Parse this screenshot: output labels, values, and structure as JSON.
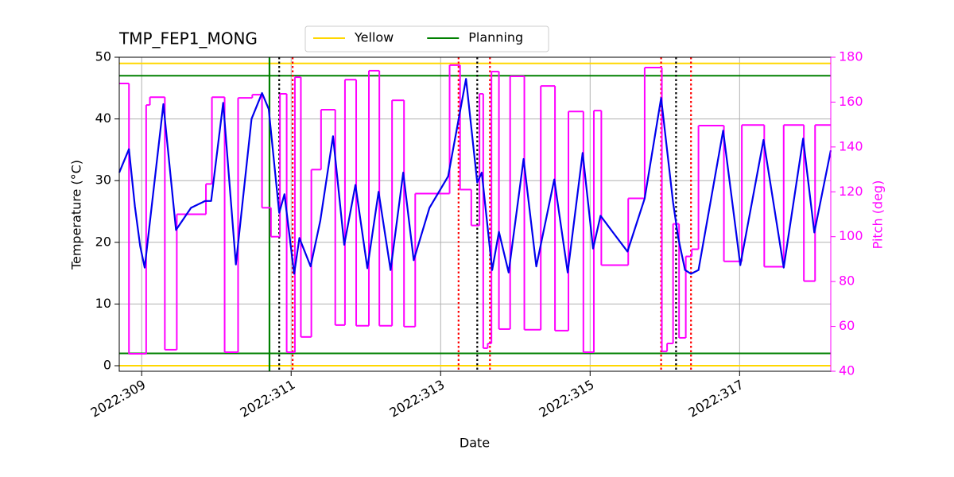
{
  "chart_data": {
    "type": "line",
    "title": "TMP_FEP1_MONG",
    "xlabel": "Date",
    "ylabel": "Temperature (°C)",
    "y2label": "Pitch (deg)",
    "xlim": [
      308.7,
      318.22
    ],
    "ylim": [
      -0.9,
      50
    ],
    "y2lim": [
      40,
      180
    ],
    "xticks": [
      {
        "value": 309,
        "label": "2022:309"
      },
      {
        "value": 311,
        "label": "2022:311"
      },
      {
        "value": 313,
        "label": "2022:313"
      },
      {
        "value": 315,
        "label": "2022:315"
      },
      {
        "value": 317,
        "label": "2022:317"
      }
    ],
    "yticks": [
      0,
      10,
      20,
      30,
      40,
      50
    ],
    "y2ticks": [
      40,
      60,
      80,
      100,
      120,
      140,
      160,
      180
    ],
    "grid": true,
    "legend": "upper center",
    "y2color": "#ff00ff",
    "series": [
      {
        "color": "#0000ee",
        "axis": "y",
        "x": [
          308.7,
          308.83,
          308.91,
          308.98,
          309.04,
          309.29,
          309.46,
          309.66,
          309.85,
          309.93,
          310.09,
          310.26,
          310.47,
          310.61,
          310.7,
          310.84,
          310.91,
          311.04,
          311.11,
          311.26,
          311.39,
          311.56,
          311.71,
          311.86,
          312.02,
          312.17,
          312.33,
          312.5,
          312.64,
          312.85,
          313.1,
          313.34,
          313.49,
          313.55,
          313.69,
          313.78,
          313.91,
          314.11,
          314.28,
          314.52,
          314.7,
          314.9,
          315.04,
          315.14,
          315.3,
          315.5,
          315.73,
          315.95,
          316.11,
          316.18,
          316.27,
          316.35,
          316.45,
          316.78,
          317.01,
          317.32,
          317.59,
          317.85,
          318.0,
          318.22
        ],
        "values": [
          31.3,
          35.1,
          25.8,
          19.4,
          15.9,
          42.4,
          22.0,
          25.6,
          26.7,
          26.7,
          42.6,
          16.4,
          40.0,
          44.2,
          41.6,
          24.8,
          27.8,
          14.9,
          20.7,
          16.1,
          23.5,
          37.2,
          19.6,
          29.3,
          15.8,
          28.2,
          15.5,
          31.3,
          17.1,
          25.6,
          30.7,
          46.5,
          29.7,
          31.3,
          15.5,
          21.7,
          15.1,
          33.5,
          16.1,
          30.2,
          15.1,
          34.5,
          19.0,
          24.3,
          21.7,
          18.5,
          27.1,
          43.4,
          26.5,
          20.7,
          15.5,
          14.9,
          15.5,
          38.1,
          16.3,
          36.6,
          15.9,
          36.8,
          21.6,
          34.9
        ]
      },
      {
        "color": "#ff00ff",
        "axis": "y2",
        "step": "post",
        "x": [
          308.7,
          308.83,
          309.06,
          309.11,
          309.31,
          309.47,
          309.86,
          309.94,
          310.11,
          310.29,
          310.48,
          310.61,
          310.73,
          310.85,
          310.94,
          311.05,
          311.13,
          311.27,
          311.4,
          311.59,
          311.72,
          311.87,
          312.04,
          312.18,
          312.35,
          312.51,
          312.66,
          313.12,
          313.26,
          313.41,
          313.52,
          313.57,
          313.63,
          313.68,
          313.78,
          313.93,
          314.12,
          314.34,
          314.53,
          314.71,
          314.91,
          315.05,
          315.15,
          315.51,
          315.73,
          315.96,
          316.03,
          316.11,
          316.19,
          316.28,
          316.36,
          316.45,
          316.79,
          317.03,
          317.33,
          317.59,
          317.86,
          318.01
        ],
        "values": [
          168.3,
          47.8,
          158.7,
          162.2,
          49.6,
          110,
          123.5,
          162.2,
          48.5,
          161.9,
          163.3,
          112.9,
          100,
          163.7,
          48.5,
          171.1,
          55.3,
          129.9,
          156.6,
          60.6,
          170,
          60.3,
          174,
          60.3,
          160.8,
          59.9,
          119.2,
          176.5,
          121,
          105,
          163.7,
          50.3,
          52.4,
          173.6,
          58.8,
          171.5,
          58.5,
          167.2,
          58.1,
          155.8,
          48.5,
          156.2,
          87.3,
          117.1,
          175.4,
          48.9,
          52.4,
          105.7,
          54.9,
          91.2,
          94.4,
          149.5,
          89,
          149.8,
          86.6,
          149.8,
          80.2,
          149.8
        ]
      }
    ],
    "hlines": [
      {
        "name": "Yellow",
        "color": "#ffd700",
        "values": [
          49,
          0
        ]
      },
      {
        "name": "Planning",
        "color": "#008000",
        "values": [
          47,
          2
        ]
      }
    ],
    "vlines": [
      {
        "color": "#008000",
        "style": "solid",
        "values": [
          310.71
        ]
      },
      {
        "color": "#000000",
        "style": "dotted",
        "values": [
          310.84,
          313.49,
          316.15
        ]
      },
      {
        "color": "#ff0000",
        "style": "dotted",
        "values": [
          311.02,
          313.24,
          313.66,
          315.95,
          316.35
        ]
      }
    ]
  }
}
